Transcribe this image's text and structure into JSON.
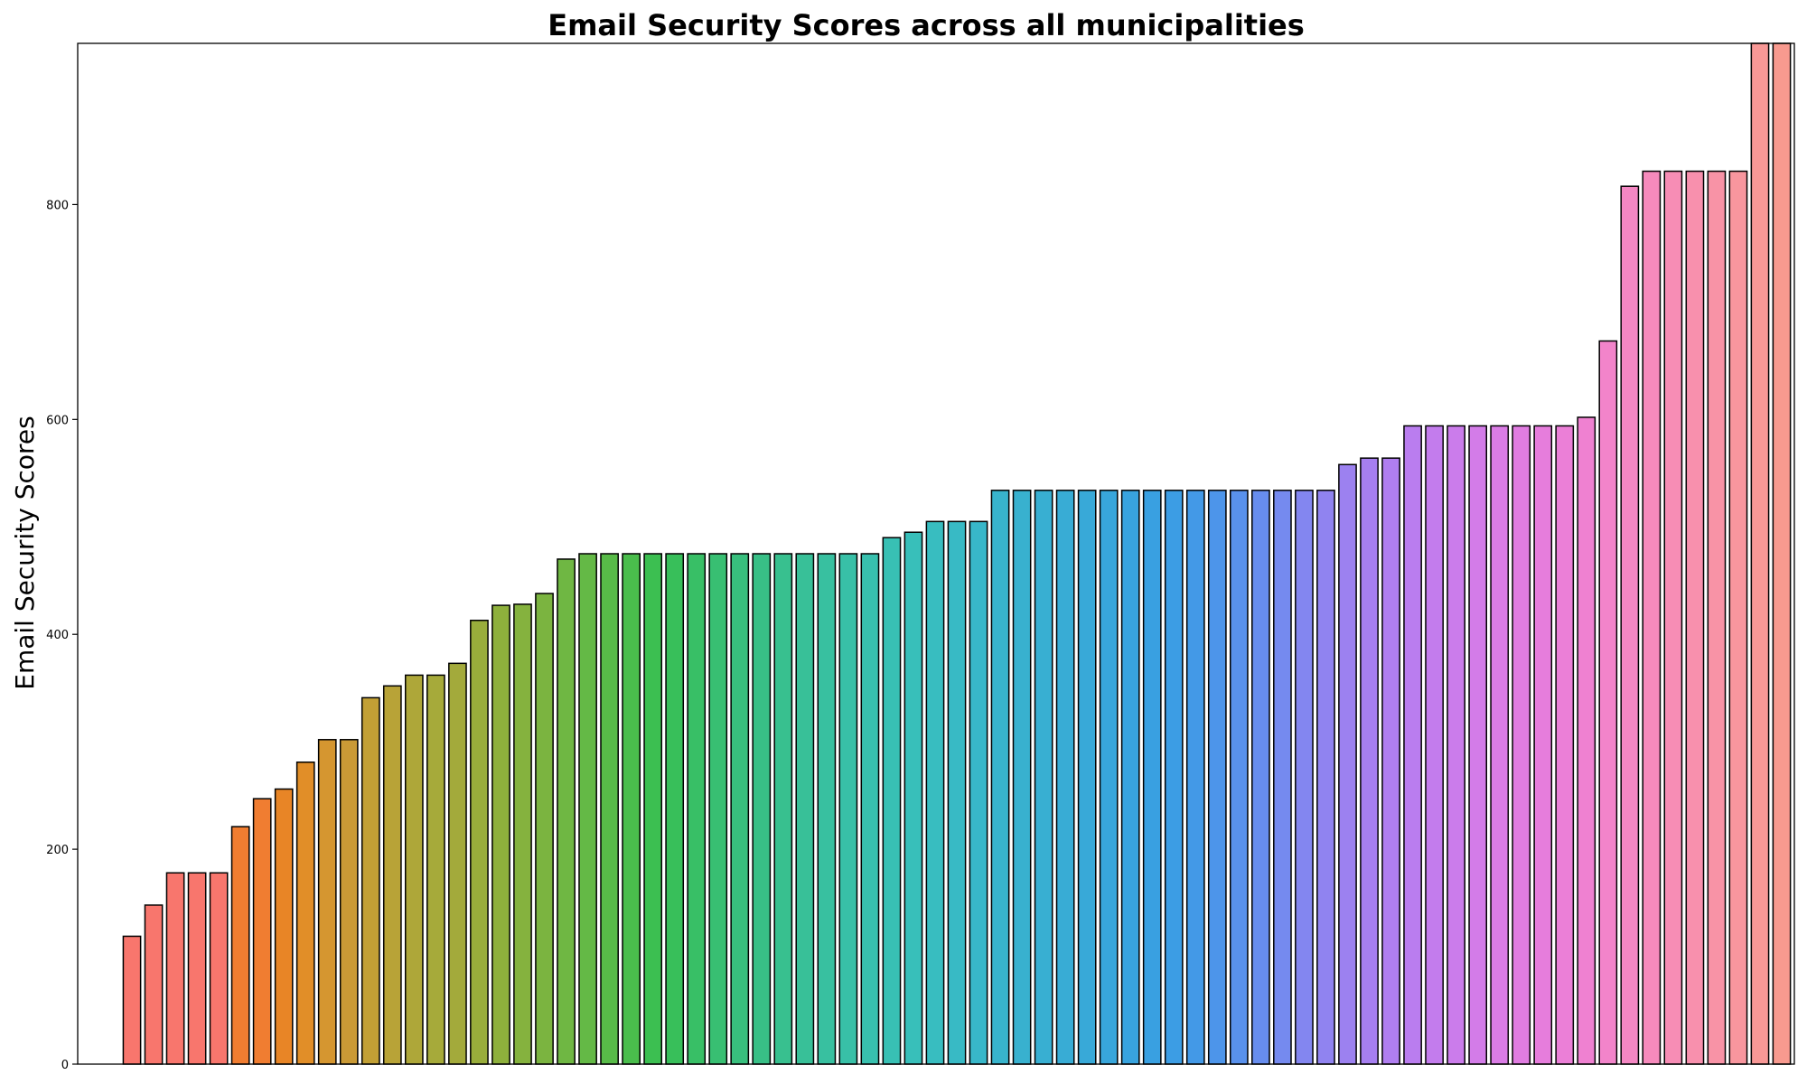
{
  "chart_data": {
    "type": "bar",
    "title": "Email Security Scores across all municipalities",
    "xlabel": "",
    "ylabel": "Email Security Scores",
    "ylim": [
      0,
      950
    ],
    "yticks": [
      0,
      200,
      400,
      600,
      800
    ],
    "grid": false,
    "values": [
      0,
      119,
      148,
      178,
      178,
      178,
      221,
      247,
      256,
      281,
      302,
      302,
      341,
      352,
      362,
      362,
      373,
      413,
      427,
      428,
      438,
      470,
      475,
      475,
      475,
      475,
      475,
      475,
      475,
      475,
      475,
      475,
      475,
      475,
      475,
      475,
      490,
      495,
      505,
      505,
      505,
      534,
      534,
      534,
      534,
      534,
      534,
      534,
      534,
      534,
      534,
      534,
      534,
      534,
      534,
      534,
      534,
      558,
      564,
      564,
      594,
      594,
      594,
      594,
      594,
      594,
      594,
      594,
      602,
      673,
      817,
      831,
      831,
      831,
      831,
      831,
      950,
      950
    ],
    "colors": [
      "#f8766d",
      "#f8766d",
      "#f8766d",
      "#f8766d",
      "#f8766d",
      "#f8766d",
      "#f07d31",
      "#f07d31",
      "#e88526",
      "#e18e28",
      "#d59630",
      "#ca9a36",
      "#c2a035",
      "#b8a337",
      "#aea739",
      "#a6aa3a",
      "#a3aa3b",
      "#99ad3b",
      "#8eb03c",
      "#85b23e",
      "#7bb440",
      "#6fb743",
      "#64b946",
      "#58bb48",
      "#4abd4c",
      "#3cbf51",
      "#38bf5a",
      "#38bf66",
      "#38bf72",
      "#38bf7d",
      "#38bf86",
      "#38c08f",
      "#38c098",
      "#38c0a0",
      "#38c0a7",
      "#38c0ae",
      "#38c0b4",
      "#38bfba",
      "#38bdc0",
      "#38bac5",
      "#38b7c9",
      "#38b4cc",
      "#38b1cf",
      "#38afd2",
      "#38acd5",
      "#38a9d8",
      "#38a6db",
      "#38a3de",
      "#39a0e1",
      "#3c9de4",
      "#4399e7",
      "#4d95ea",
      "#5991ec",
      "#678dee",
      "#758aef",
      "#8386f0",
      "#9083f0",
      "#9c81f0",
      "#a67ff0",
      "#b07ef0",
      "#ba7def",
      "#c37ced",
      "#cb7ceb",
      "#d37ce8",
      "#da7ce5",
      "#e07ce1",
      "#e67ddc",
      "#eb7fd7",
      "#ef81d1",
      "#f284ca",
      "#f487c3",
      "#f68abc",
      "#f78db5",
      "#f890ad",
      "#f893a6",
      "#f8969e",
      "#f89896",
      "#f89a8f"
    ]
  }
}
